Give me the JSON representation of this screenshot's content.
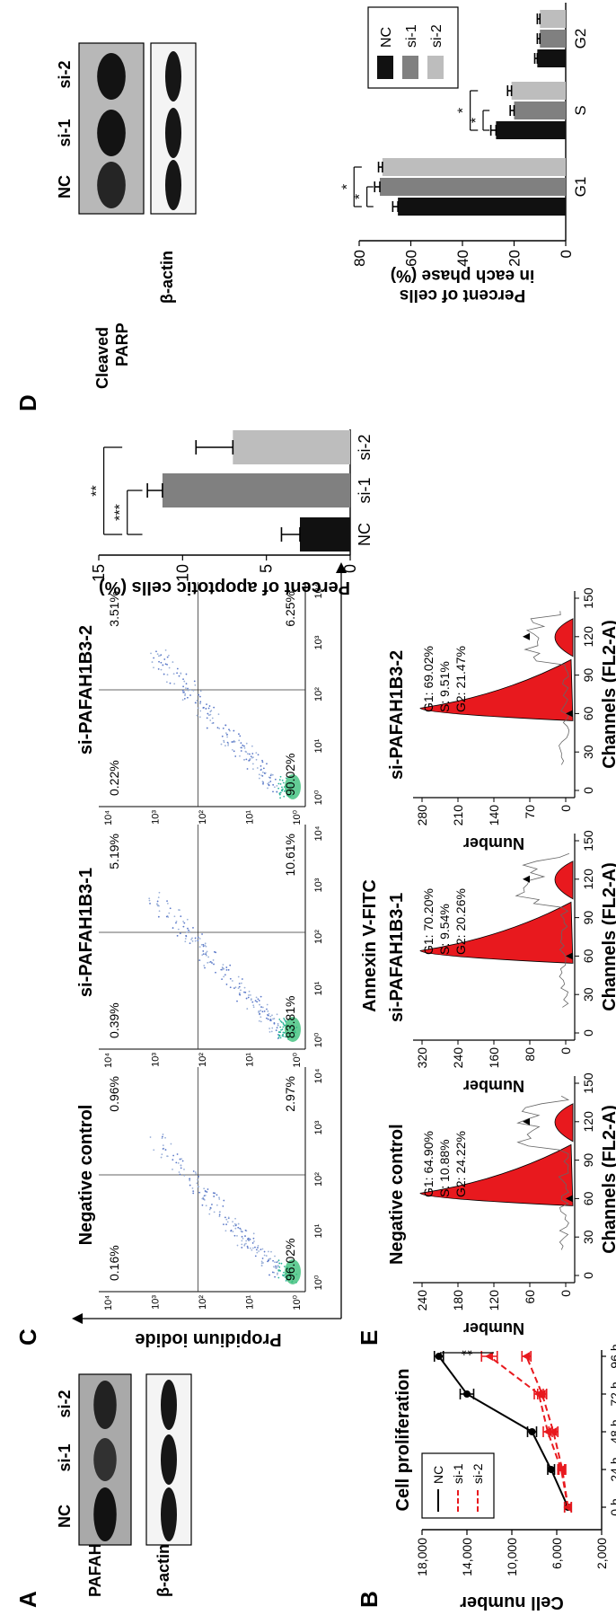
{
  "panels": {
    "A": {
      "letter": "A",
      "columns": [
        "NC",
        "si-1",
        "si-2"
      ],
      "rows": [
        "PAFAH1B3",
        "β-actin"
      ]
    },
    "B": {
      "letter": "B",
      "title": "Cell proliferation",
      "ylabel": "Cell number",
      "legend": [
        "NC",
        "si-1",
        "si-2"
      ],
      "sig": [
        "**",
        "***"
      ]
    },
    "C": {
      "letter": "C",
      "ylabel": "Propidium iodide",
      "xlabel": "Annexin V-FITC",
      "ticks": [
        "10⁰",
        "10¹",
        "10²",
        "10³",
        "10⁴"
      ],
      "plots": [
        {
          "title": "Negative control",
          "ul": "0.16%",
          "ur": "0.96%",
          "ll": "96.02%",
          "lr": "2.97%"
        },
        {
          "title": "si-PAFAH1B3-1",
          "ul": "0.39%",
          "ur": "5.19%",
          "ll": "83.81%",
          "lr": "10.61%"
        },
        {
          "title": "si-PAFAH1B3-2",
          "ul": "0.22%",
          "ur": "3.51%",
          "ll": "90.02%",
          "lr": "6.25%"
        }
      ]
    },
    "D": {
      "letter": "D",
      "ylabel": "Percent of apoptotic cells (%)",
      "sig": [
        "***",
        "**"
      ],
      "wb_columns": [
        "NC",
        "si-1",
        "si-2"
      ],
      "wb_rows": [
        "Cleaved PARP",
        "β-actin"
      ],
      "cc_ylabel": "Percent of cells in each phase (%)",
      "cc_sig": [
        "*",
        "*",
        "*",
        "*"
      ],
      "cc_legend": [
        "NC",
        "si-1",
        "si-2"
      ]
    },
    "E": {
      "letter": "E",
      "xlabel": "Channels (FL2-A)",
      "ylabel": "Number",
      "xticks": [
        "0",
        "30",
        "60",
        "90",
        "120",
        "150"
      ],
      "plots": [
        {
          "title": "Negative control",
          "g1": "G1: 64.90%",
          "s": "S: 10.88%",
          "g2": "G2: 24.22%",
          "yticks": [
            "0",
            "60",
            "120",
            "180",
            "240"
          ]
        },
        {
          "title": "si-PAFAH1B3-1",
          "g1": "G1: 70.20%",
          "s": "S: 9.54%",
          "g2": "G2: 20.26%",
          "yticks": [
            "0",
            "80",
            "160",
            "240",
            "320"
          ]
        },
        {
          "title": "si-PAFAH1B3-2",
          "g1": "G1: 69.02%",
          "s": "S: 9.51%",
          "g2": "G2: 21.47%",
          "yticks": [
            "0",
            "70",
            "140",
            "210",
            "280"
          ]
        }
      ]
    }
  },
  "chart_data": [
    {
      "type": "line",
      "title": "Cell proliferation",
      "ylabel": "Cell number",
      "x": [
        "0 h",
        "24 h",
        "48 h",
        "72 h",
        "96 h"
      ],
      "ylim": [
        2000,
        18000
      ],
      "yticks": [
        2000,
        6000,
        10000,
        14000,
        18000
      ],
      "ytick_labels": [
        "2,000",
        "6,000",
        "10,000",
        "14,000",
        "18,000"
      ],
      "series": [
        {
          "name": "NC",
          "values": [
            5000,
            6500,
            8200,
            14000,
            16500
          ],
          "errors": [
            300,
            300,
            400,
            600,
            400
          ],
          "color": "#000000",
          "dash": false
        },
        {
          "name": "si-1",
          "values": [
            5000,
            5600,
            6800,
            7600,
            12000
          ],
          "errors": [
            300,
            300,
            400,
            400,
            700
          ],
          "color": "#e8191e",
          "dash": true
        },
        {
          "name": "si-2",
          "values": [
            5000,
            5500,
            6300,
            7300,
            8700
          ],
          "errors": [
            300,
            300,
            400,
            400,
            400
          ],
          "color": "#e8191e",
          "dash": true
        }
      ]
    },
    {
      "type": "bar",
      "ylabel": "Percent of apoptotic cells (%)",
      "categories": [
        "NC",
        "si-1",
        "si-2"
      ],
      "values": [
        3,
        11.2,
        7
      ],
      "errors": [
        1.1,
        0.9,
        2.2
      ],
      "ylim": [
        0,
        15
      ],
      "yticks": [
        0,
        5,
        10,
        15
      ],
      "colors": [
        "#111111",
        "#808080",
        "#bdbdbd"
      ]
    },
    {
      "type": "bar",
      "ylabel": "Percent of cells in each phase (%)",
      "categories": [
        "G1",
        "S",
        "G2"
      ],
      "series": [
        {
          "name": "NC",
          "values": [
            65,
            27,
            11
          ],
          "errors": [
            2,
            2,
            1
          ],
          "color": "#111111"
        },
        {
          "name": "si-1",
          "values": [
            72,
            20,
            10
          ],
          "errors": [
            2,
            1.5,
            1
          ],
          "color": "#808080"
        },
        {
          "name": "si-2",
          "values": [
            71,
            21,
            10
          ],
          "errors": [
            1.5,
            1.5,
            1
          ],
          "color": "#bdbdbd"
        }
      ],
      "ylim": [
        0,
        80
      ],
      "yticks": [
        0,
        20,
        40,
        60,
        80
      ]
    }
  ]
}
